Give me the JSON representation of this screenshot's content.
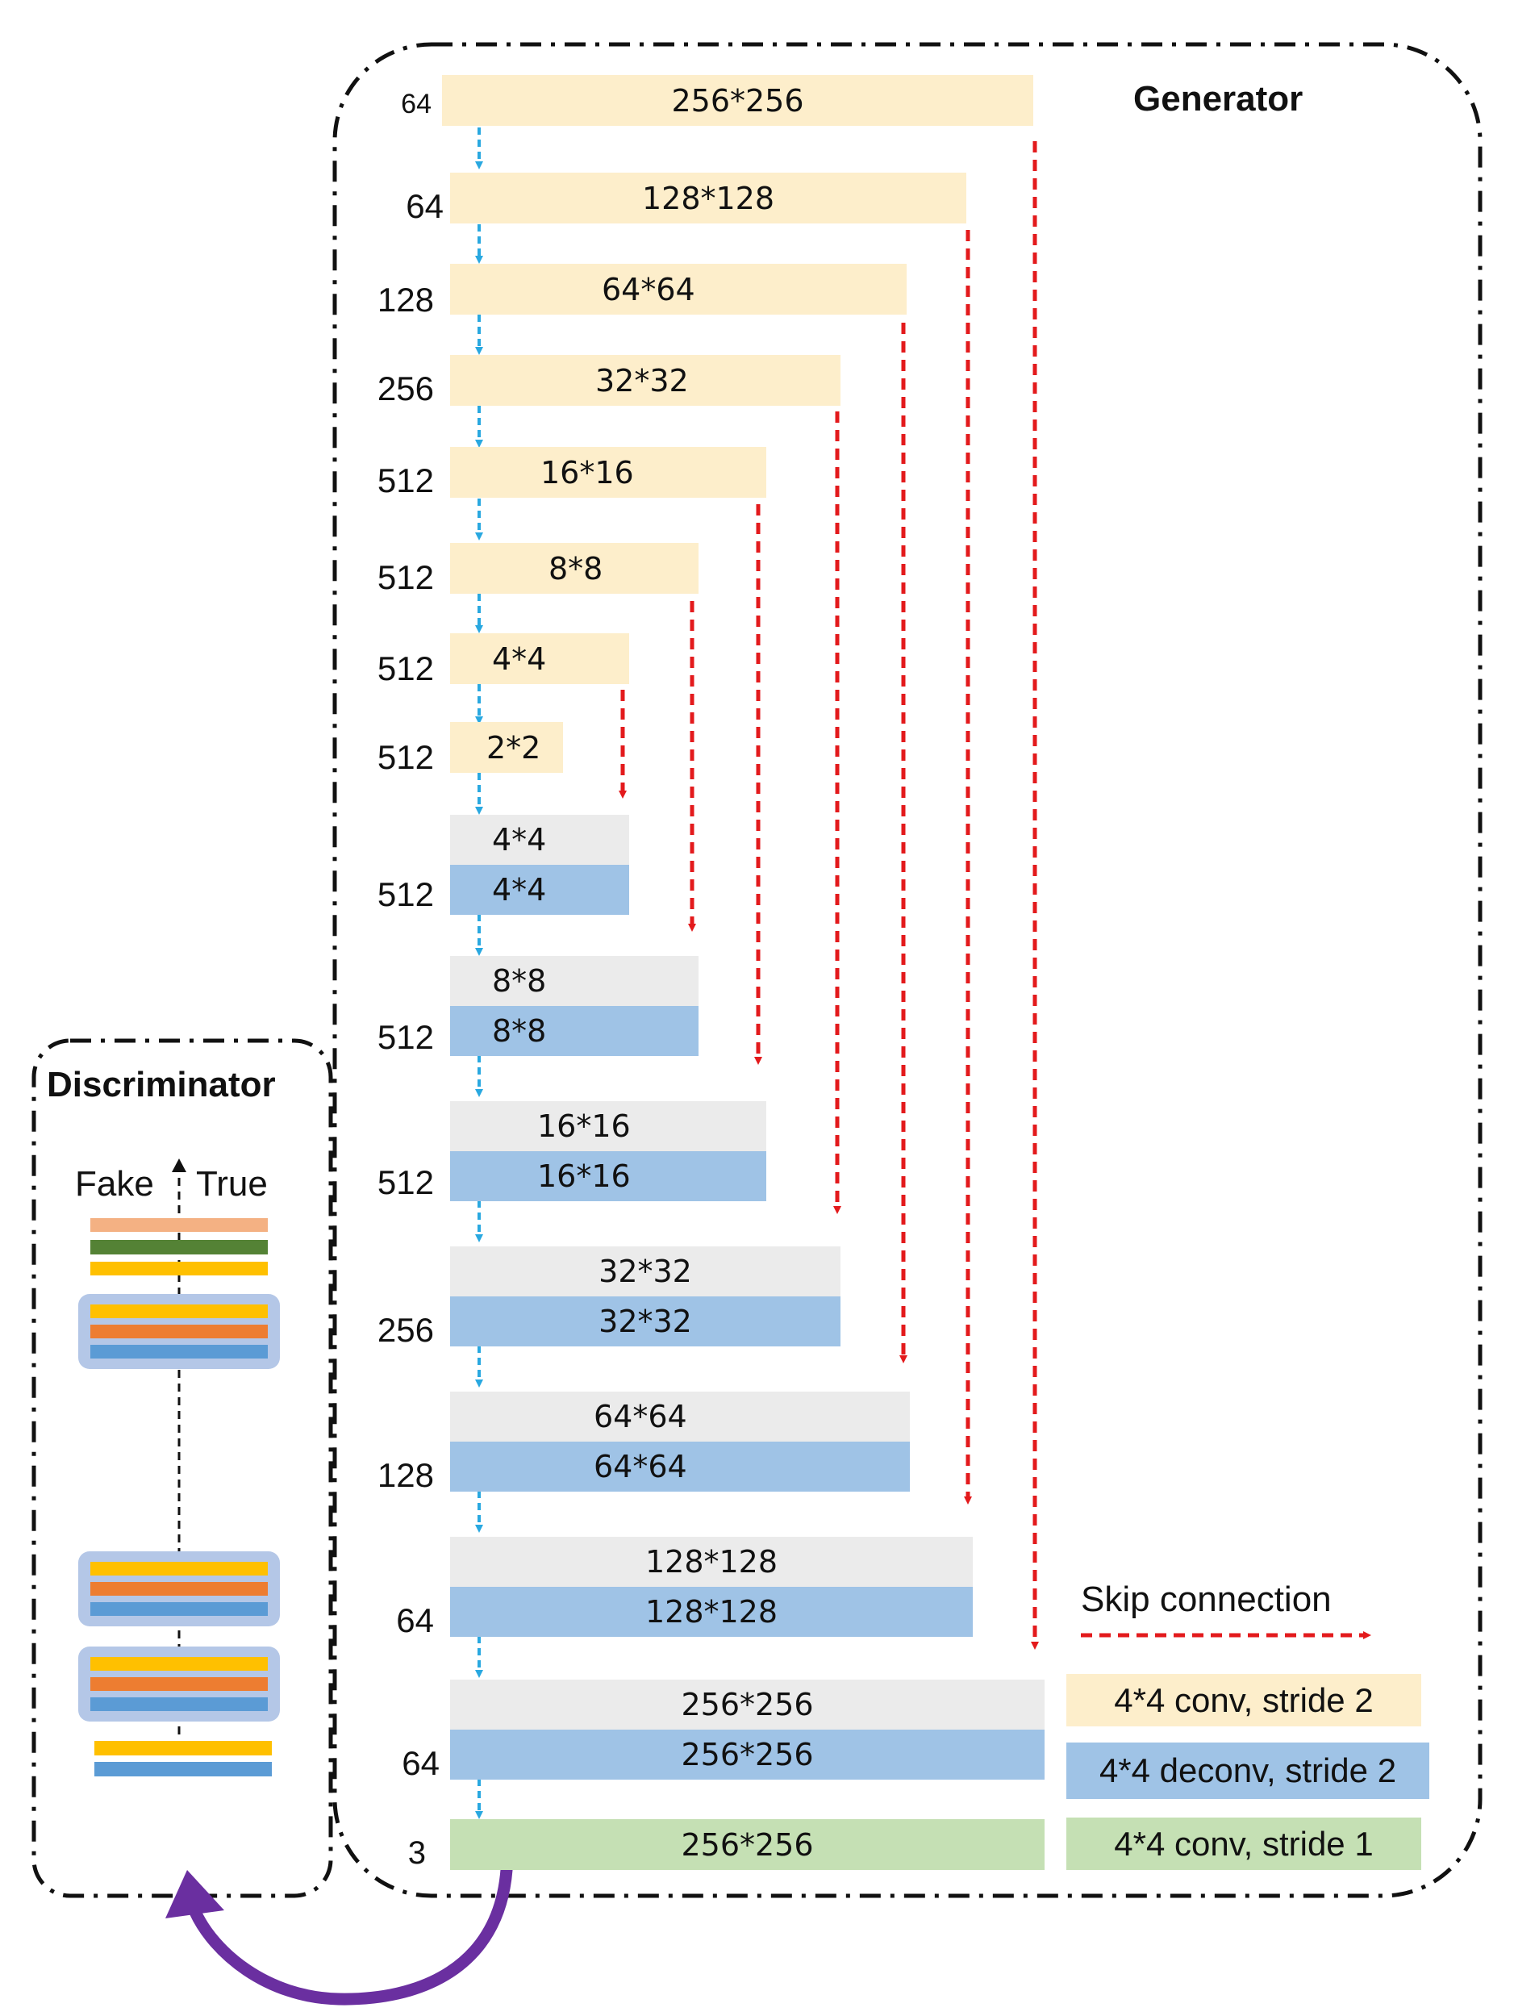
{
  "generator": {
    "title": "Generator",
    "encoder": [
      {
        "channels": "64",
        "size": "256*256"
      },
      {
        "channels": "64",
        "size": "128*128"
      },
      {
        "channels": "128",
        "size": "64*64"
      },
      {
        "channels": "256",
        "size": "32*32"
      },
      {
        "channels": "512",
        "size": "16*16"
      },
      {
        "channels": "512",
        "size": "8*8"
      },
      {
        "channels": "512",
        "size": "4*4"
      },
      {
        "channels": "512",
        "size": "2*2"
      }
    ],
    "decoder": [
      {
        "channels": "512",
        "top": "4*4",
        "bottom": "4*4"
      },
      {
        "channels": "512",
        "top": "8*8",
        "bottom": "8*8"
      },
      {
        "channels": "512",
        "top": "16*16",
        "bottom": "16*16"
      },
      {
        "channels": "256",
        "top": "32*32",
        "bottom": "32*32"
      },
      {
        "channels": "128",
        "top": "64*64",
        "bottom": "64*64"
      },
      {
        "channels": "64",
        "top": "128*128",
        "bottom": "128*128"
      },
      {
        "channels": "64",
        "top": "256*256",
        "bottom": "256*256"
      }
    ],
    "output": {
      "channels": "3",
      "size": "256*256"
    }
  },
  "discriminator": {
    "title": "Discriminator",
    "fake_label": "Fake",
    "true_label": "True"
  },
  "legend": {
    "skip": "Skip connection",
    "conv2": "4*4 conv, stride 2",
    "deconv2": "4*4 deconv, stride 2",
    "conv1": "4*4 conv, stride 1"
  },
  "colors": {
    "encoder": "#fdeecb",
    "decoder_top": "#ebebeb",
    "decoder": "#9fc3e6",
    "output": "#c5e0b4",
    "skip_arrow": "#e31a1c",
    "flow_arrow": "#29a8e0",
    "feedback_arrow": "#6a2fa0",
    "disc_peach": "#f4b183",
    "disc_green": "#548235",
    "disc_yellow": "#ffc000",
    "disc_orange": "#ed7d31",
    "disc_blue": "#5b9bd5",
    "disc_group_bg": "#b4c7e7"
  }
}
